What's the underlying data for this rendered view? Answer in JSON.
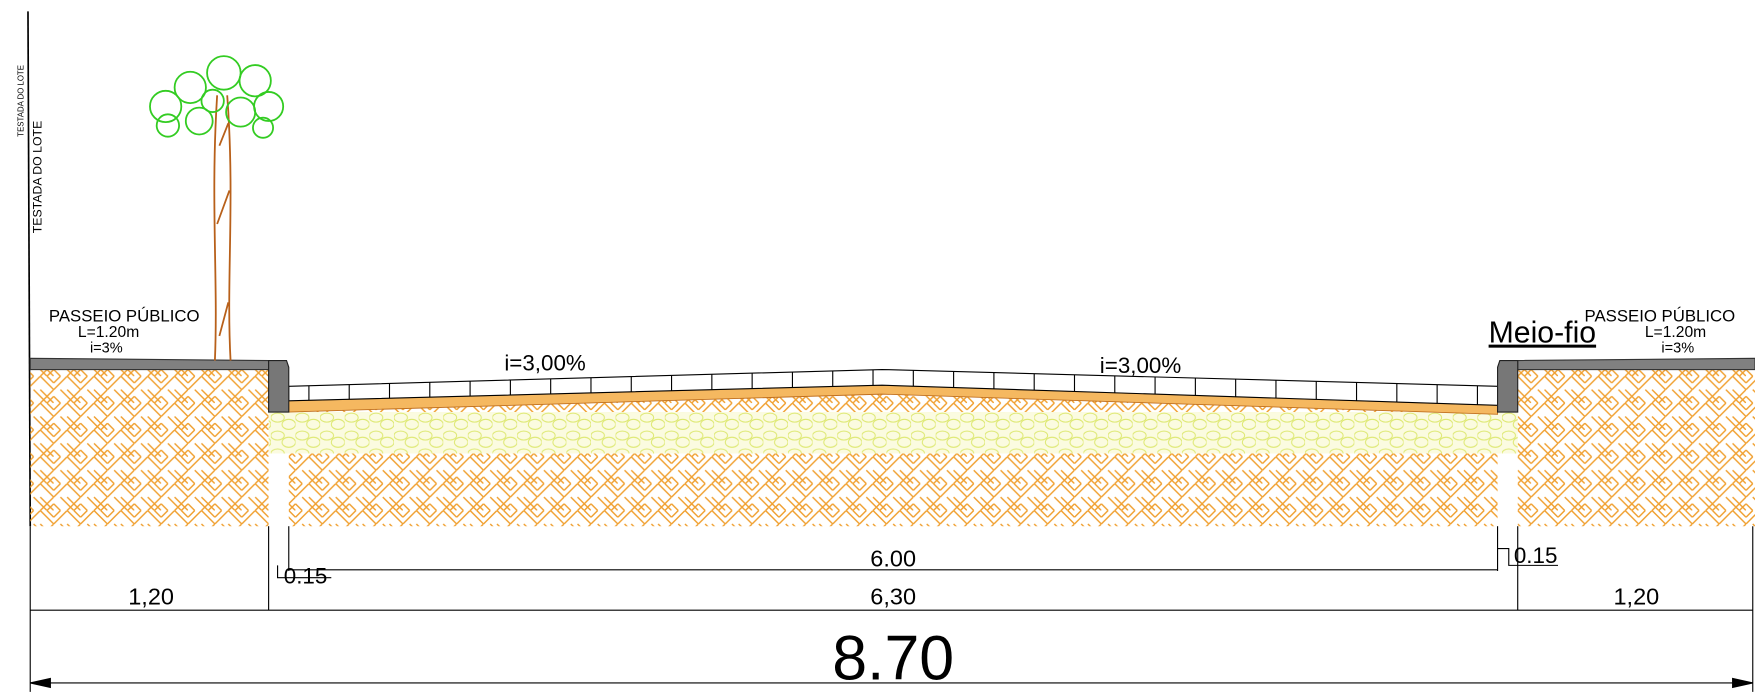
{
  "lot_labels": [
    "TESTADA DO LOTE",
    "TESTADA DO LOTE"
  ],
  "sidewalks": [
    {
      "title": "PASSEIO PÚBLICO",
      "width": "L=1.20m",
      "slope": "i=3%"
    },
    {
      "title": "PASSEIO PÚBLICO",
      "width": "L=1.20m",
      "slope": "i=3%"
    }
  ],
  "road_slopes": [
    "i=3,00%",
    "i=3,00%"
  ],
  "curb_label": "Meio-fio",
  "dimensions": {
    "carriageway": "6.00",
    "curbs": [
      "0.15",
      "0.15"
    ],
    "sidewalks": [
      "1,20",
      "1,20"
    ],
    "road": "6,30",
    "total": "8.70"
  }
}
